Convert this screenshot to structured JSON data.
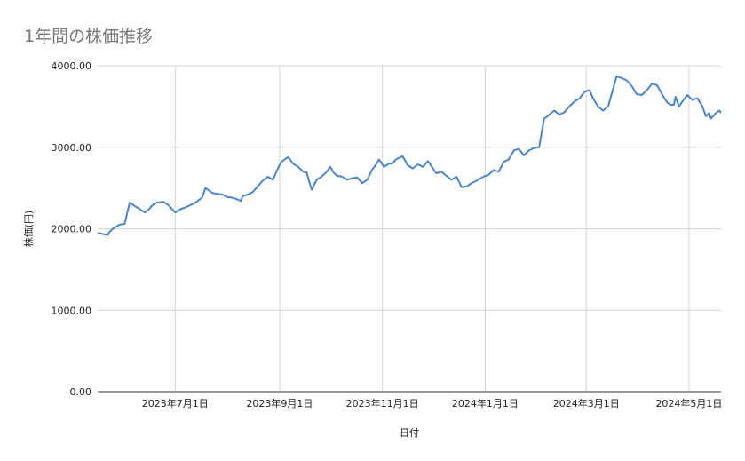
{
  "chart_data": {
    "type": "line",
    "title": "1年間の株価推移",
    "xlabel": "日付",
    "ylabel": "株価(円)",
    "ylim": [
      0,
      4000
    ],
    "y_ticks": [
      "0.00",
      "1000.00",
      "2000.00",
      "3000.00",
      "4000.00"
    ],
    "x_range": [
      "2023-05-16",
      "2024-05-20"
    ],
    "x_ticks": [
      {
        "date": "2023-07-01",
        "label": "2023年7月1日"
      },
      {
        "date": "2023-09-01",
        "label": "2023年9月1日"
      },
      {
        "date": "2023-11-01",
        "label": "2023年11月1日"
      },
      {
        "date": "2024-01-01",
        "label": "2024年1月1日"
      },
      {
        "date": "2024-03-01",
        "label": "2024年3月1日"
      },
      {
        "date": "2024-05-01",
        "label": "2024年5月1日"
      }
    ],
    "grid": true,
    "legend": "none",
    "line_color": "#4a86c8",
    "series": [
      {
        "x": [
          "2023-05-16",
          "2023-05-18",
          "2023-05-22",
          "2023-05-23",
          "2023-05-25",
          "2023-05-29",
          "2023-06-01",
          "2023-06-04",
          "2023-06-07",
          "2023-06-10",
          "2023-06-13",
          "2023-06-16",
          "2023-06-17",
          "2023-06-20",
          "2023-06-24",
          "2023-06-27",
          "2023-07-01",
          "2023-07-04",
          "2023-07-07",
          "2023-07-10",
          "2023-07-13",
          "2023-07-17",
          "2023-07-19",
          "2023-07-23",
          "2023-07-25",
          "2023-07-29",
          "2023-08-01",
          "2023-08-04",
          "2023-08-07",
          "2023-08-09",
          "2023-08-10",
          "2023-08-13",
          "2023-08-16",
          "2023-08-19",
          "2023-08-22",
          "2023-08-25",
          "2023-08-28",
          "2023-08-31",
          "2023-09-02",
          "2023-09-04",
          "2023-09-06",
          "2023-09-09",
          "2023-09-12",
          "2023-09-15",
          "2023-09-17",
          "2023-09-20",
          "2023-09-23",
          "2023-09-26",
          "2023-09-29",
          "2023-10-01",
          "2023-10-03",
          "2023-10-05",
          "2023-10-08",
          "2023-10-11",
          "2023-10-14",
          "2023-10-17",
          "2023-10-20",
          "2023-10-23",
          "2023-10-26",
          "2023-10-28",
          "2023-10-30",
          "2023-11-02",
          "2023-11-05",
          "2023-11-07",
          "2023-11-09",
          "2023-11-13",
          "2023-11-16",
          "2023-11-19",
          "2023-11-22",
          "2023-11-25",
          "2023-11-28",
          "2023-12-01",
          "2023-12-03",
          "2023-12-06",
          "2023-12-09",
          "2023-12-12",
          "2023-12-15",
          "2023-12-18",
          "2023-12-21",
          "2023-12-24",
          "2023-12-27",
          "2023-12-31",
          "2024-01-03",
          "2024-01-06",
          "2024-01-09",
          "2024-01-12",
          "2024-01-15",
          "2024-01-18",
          "2024-01-21",
          "2024-01-24",
          "2024-01-27",
          "2024-01-30",
          "2024-02-02",
          "2024-02-05",
          "2024-02-07",
          "2024-02-08",
          "2024-02-11",
          "2024-02-14",
          "2024-02-17",
          "2024-02-20",
          "2024-02-23",
          "2024-02-26",
          "2024-02-29",
          "2024-03-03",
          "2024-03-05",
          "2024-03-08",
          "2024-03-11",
          "2024-03-14",
          "2024-03-16",
          "2024-03-19",
          "2024-03-22",
          "2024-03-25",
          "2024-03-28",
          "2024-03-31",
          "2024-04-03",
          "2024-04-06",
          "2024-04-09",
          "2024-04-12",
          "2024-04-15",
          "2024-04-18",
          "2024-04-20",
          "2024-04-22",
          "2024-04-23",
          "2024-04-25",
          "2024-04-27",
          "2024-04-30",
          "2024-05-03",
          "2024-05-06",
          "2024-05-09",
          "2024-05-11",
          "2024-05-13",
          "2024-05-14",
          "2024-05-17",
          "2024-05-19",
          "2024-05-20"
        ],
        "y": [
          1950,
          1940,
          1920,
          1960,
          2000,
          2050,
          2060,
          2320,
          2280,
          2240,
          2200,
          2250,
          2280,
          2320,
          2330,
          2290,
          2200,
          2240,
          2260,
          2290,
          2320,
          2380,
          2500,
          2440,
          2430,
          2420,
          2390,
          2380,
          2360,
          2340,
          2400,
          2420,
          2450,
          2520,
          2590,
          2640,
          2600,
          2740,
          2820,
          2850,
          2880,
          2800,
          2760,
          2700,
          2690,
          2480,
          2600,
          2640,
          2700,
          2760,
          2690,
          2650,
          2640,
          2600,
          2620,
          2630,
          2560,
          2600,
          2730,
          2780,
          2850,
          2760,
          2800,
          2800,
          2850,
          2890,
          2780,
          2740,
          2790,
          2760,
          2830,
          2740,
          2680,
          2700,
          2650,
          2600,
          2640,
          2510,
          2520,
          2560,
          2590,
          2640,
          2660,
          2720,
          2700,
          2820,
          2850,
          2960,
          2980,
          2900,
          2960,
          2990,
          3000,
          3350,
          3380,
          3400,
          3450,
          3400,
          3430,
          3500,
          3560,
          3600,
          3680,
          3700,
          3600,
          3500,
          3450,
          3500,
          3650,
          3870,
          3850,
          3820,
          3750,
          3650,
          3640,
          3700,
          3780,
          3760,
          3650,
          3550,
          3520,
          3520,
          3620,
          3500,
          3560,
          3640,
          3580,
          3600,
          3500,
          3380,
          3420,
          3350,
          3420,
          3450,
          3420
        ]
      }
    ]
  }
}
